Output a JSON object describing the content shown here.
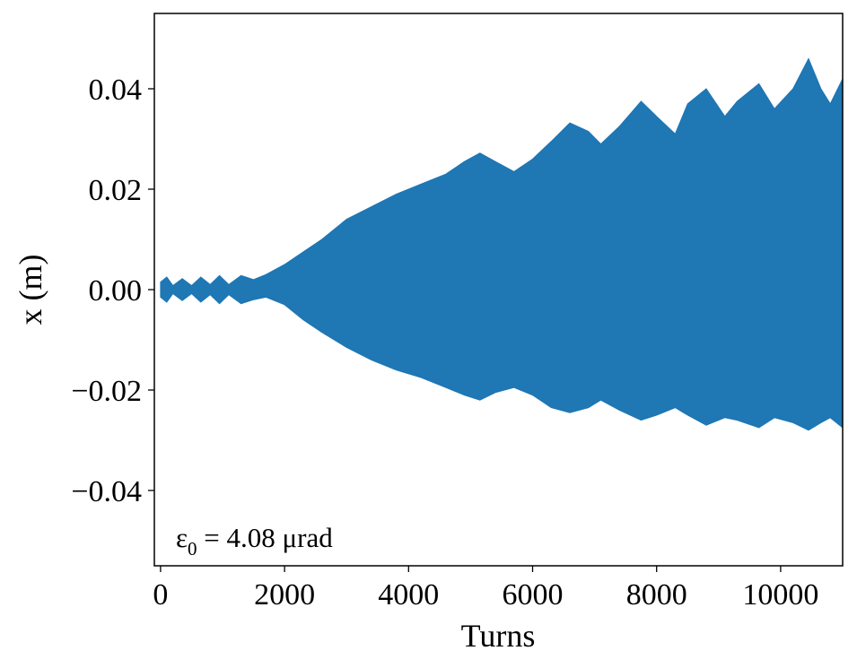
{
  "chart_data": {
    "type": "area",
    "xlabel": "Turns",
    "ylabel": "x (m)",
    "xlim": [
      -100,
      11000
    ],
    "ylim": [
      -0.055,
      0.055
    ],
    "xticks": [
      {
        "value": 0,
        "label": "0"
      },
      {
        "value": 2000,
        "label": "2000"
      },
      {
        "value": 4000,
        "label": "4000"
      },
      {
        "value": 6000,
        "label": "6000"
      },
      {
        "value": 8000,
        "label": "8000"
      },
      {
        "value": 10000,
        "label": "10000"
      }
    ],
    "yticks": [
      {
        "value": 0.04,
        "label": "0.04"
      },
      {
        "value": 0.02,
        "label": "0.02"
      },
      {
        "value": 0.0,
        "label": "0.00"
      },
      {
        "value": -0.02,
        "label": "−0.02"
      },
      {
        "value": -0.04,
        "label": "−0.04"
      }
    ],
    "annotation": {
      "symbol": "ε",
      "subscript": "0",
      "text": " = 4.08 μrad"
    },
    "grid": false,
    "series": [
      {
        "color": "#1f77b4",
        "x": [
          0,
          100,
          200,
          350,
          500,
          650,
          800,
          950,
          1100,
          1300,
          1500,
          1700,
          2000,
          2300,
          2600,
          3000,
          3400,
          3800,
          4200,
          4600,
          4900,
          5150,
          5400,
          5700,
          6000,
          6300,
          6600,
          6900,
          7100,
          7400,
          7750,
          8000,
          8300,
          8500,
          8800,
          9100,
          9300,
          9650,
          9900,
          10200,
          10450,
          10650,
          10800,
          11000
        ],
        "upper": [
          0.0015,
          0.0025,
          0.0008,
          0.0022,
          0.0008,
          0.0025,
          0.001,
          0.0028,
          0.001,
          0.0028,
          0.002,
          0.003,
          0.005,
          0.0075,
          0.01,
          0.014,
          0.0165,
          0.019,
          0.021,
          0.023,
          0.0255,
          0.0272,
          0.0255,
          0.0235,
          0.026,
          0.0295,
          0.0332,
          0.0315,
          0.029,
          0.0325,
          0.0375,
          0.0345,
          0.031,
          0.037,
          0.04,
          0.0345,
          0.0375,
          0.041,
          0.036,
          0.04,
          0.046,
          0.04,
          0.037,
          0.042
        ],
        "lower": [
          -0.0015,
          -0.0025,
          -0.0008,
          -0.0022,
          -0.0008,
          -0.0025,
          -0.001,
          -0.0028,
          -0.001,
          -0.0028,
          -0.002,
          -0.0015,
          -0.003,
          -0.006,
          -0.0085,
          -0.0115,
          -0.014,
          -0.016,
          -0.0175,
          -0.0195,
          -0.021,
          -0.022,
          -0.0205,
          -0.0195,
          -0.021,
          -0.0235,
          -0.0245,
          -0.0235,
          -0.022,
          -0.024,
          -0.026,
          -0.025,
          -0.0235,
          -0.025,
          -0.027,
          -0.0255,
          -0.026,
          -0.0275,
          -0.0255,
          -0.0265,
          -0.028,
          -0.0265,
          -0.0255,
          -0.0275
        ]
      }
    ]
  }
}
